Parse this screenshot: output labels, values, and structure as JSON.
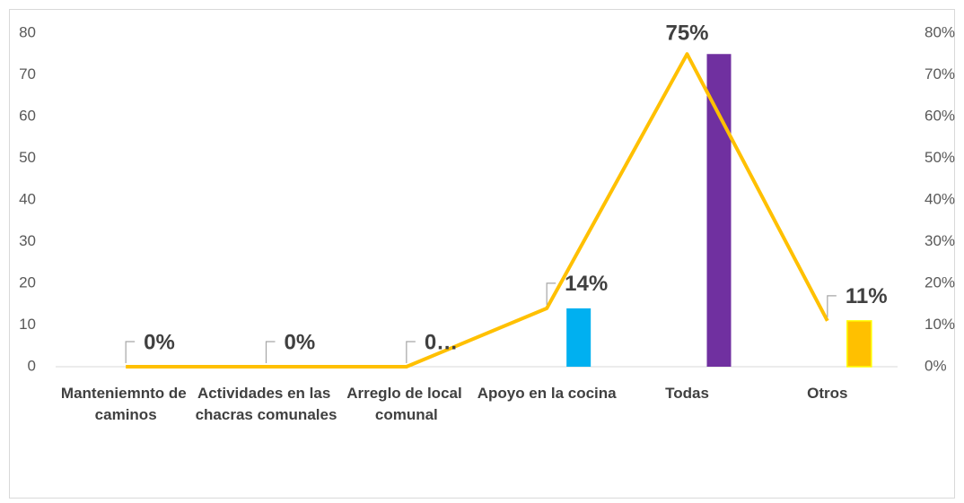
{
  "chart_data": {
    "type": "bar-line",
    "categories": [
      "Manteniemnto de caminos",
      "Actividades en las chacras comunales",
      "Arreglo de local comunal",
      "Apoyo en la cocina",
      "Todas",
      "Otros"
    ],
    "series": [
      {
        "type": "bar",
        "colors": [
          "#00b0f0",
          "#00b0f0",
          "#00b0f0",
          "#00b0f0",
          "#7030a0",
          "#ffc000"
        ],
        "values": [
          0,
          0,
          0,
          14,
          75,
          11
        ]
      },
      {
        "type": "line",
        "axis": "y2",
        "color": "#ffc000",
        "values": [
          0,
          0,
          0,
          14,
          75,
          11
        ],
        "value_labels": [
          "0%",
          "0%",
          "0…",
          "14%",
          "75%",
          "11%"
        ]
      }
    ],
    "ylim": [
      0,
      80
    ],
    "yticks": [
      0,
      10,
      20,
      30,
      40,
      50,
      60,
      70,
      80
    ],
    "y2lim": [
      0,
      80
    ],
    "y2ticks": [
      {
        "value": 0,
        "label": "0%"
      },
      {
        "value": 10,
        "label": "10%"
      },
      {
        "value": 20,
        "label": "20%"
      },
      {
        "value": 30,
        "label": "30%"
      },
      {
        "value": 40,
        "label": "40%"
      },
      {
        "value": 50,
        "label": "50%"
      },
      {
        "value": 60,
        "label": "60%"
      },
      {
        "value": 70,
        "label": "70%"
      },
      {
        "value": 80,
        "label": "80%"
      }
    ]
  }
}
